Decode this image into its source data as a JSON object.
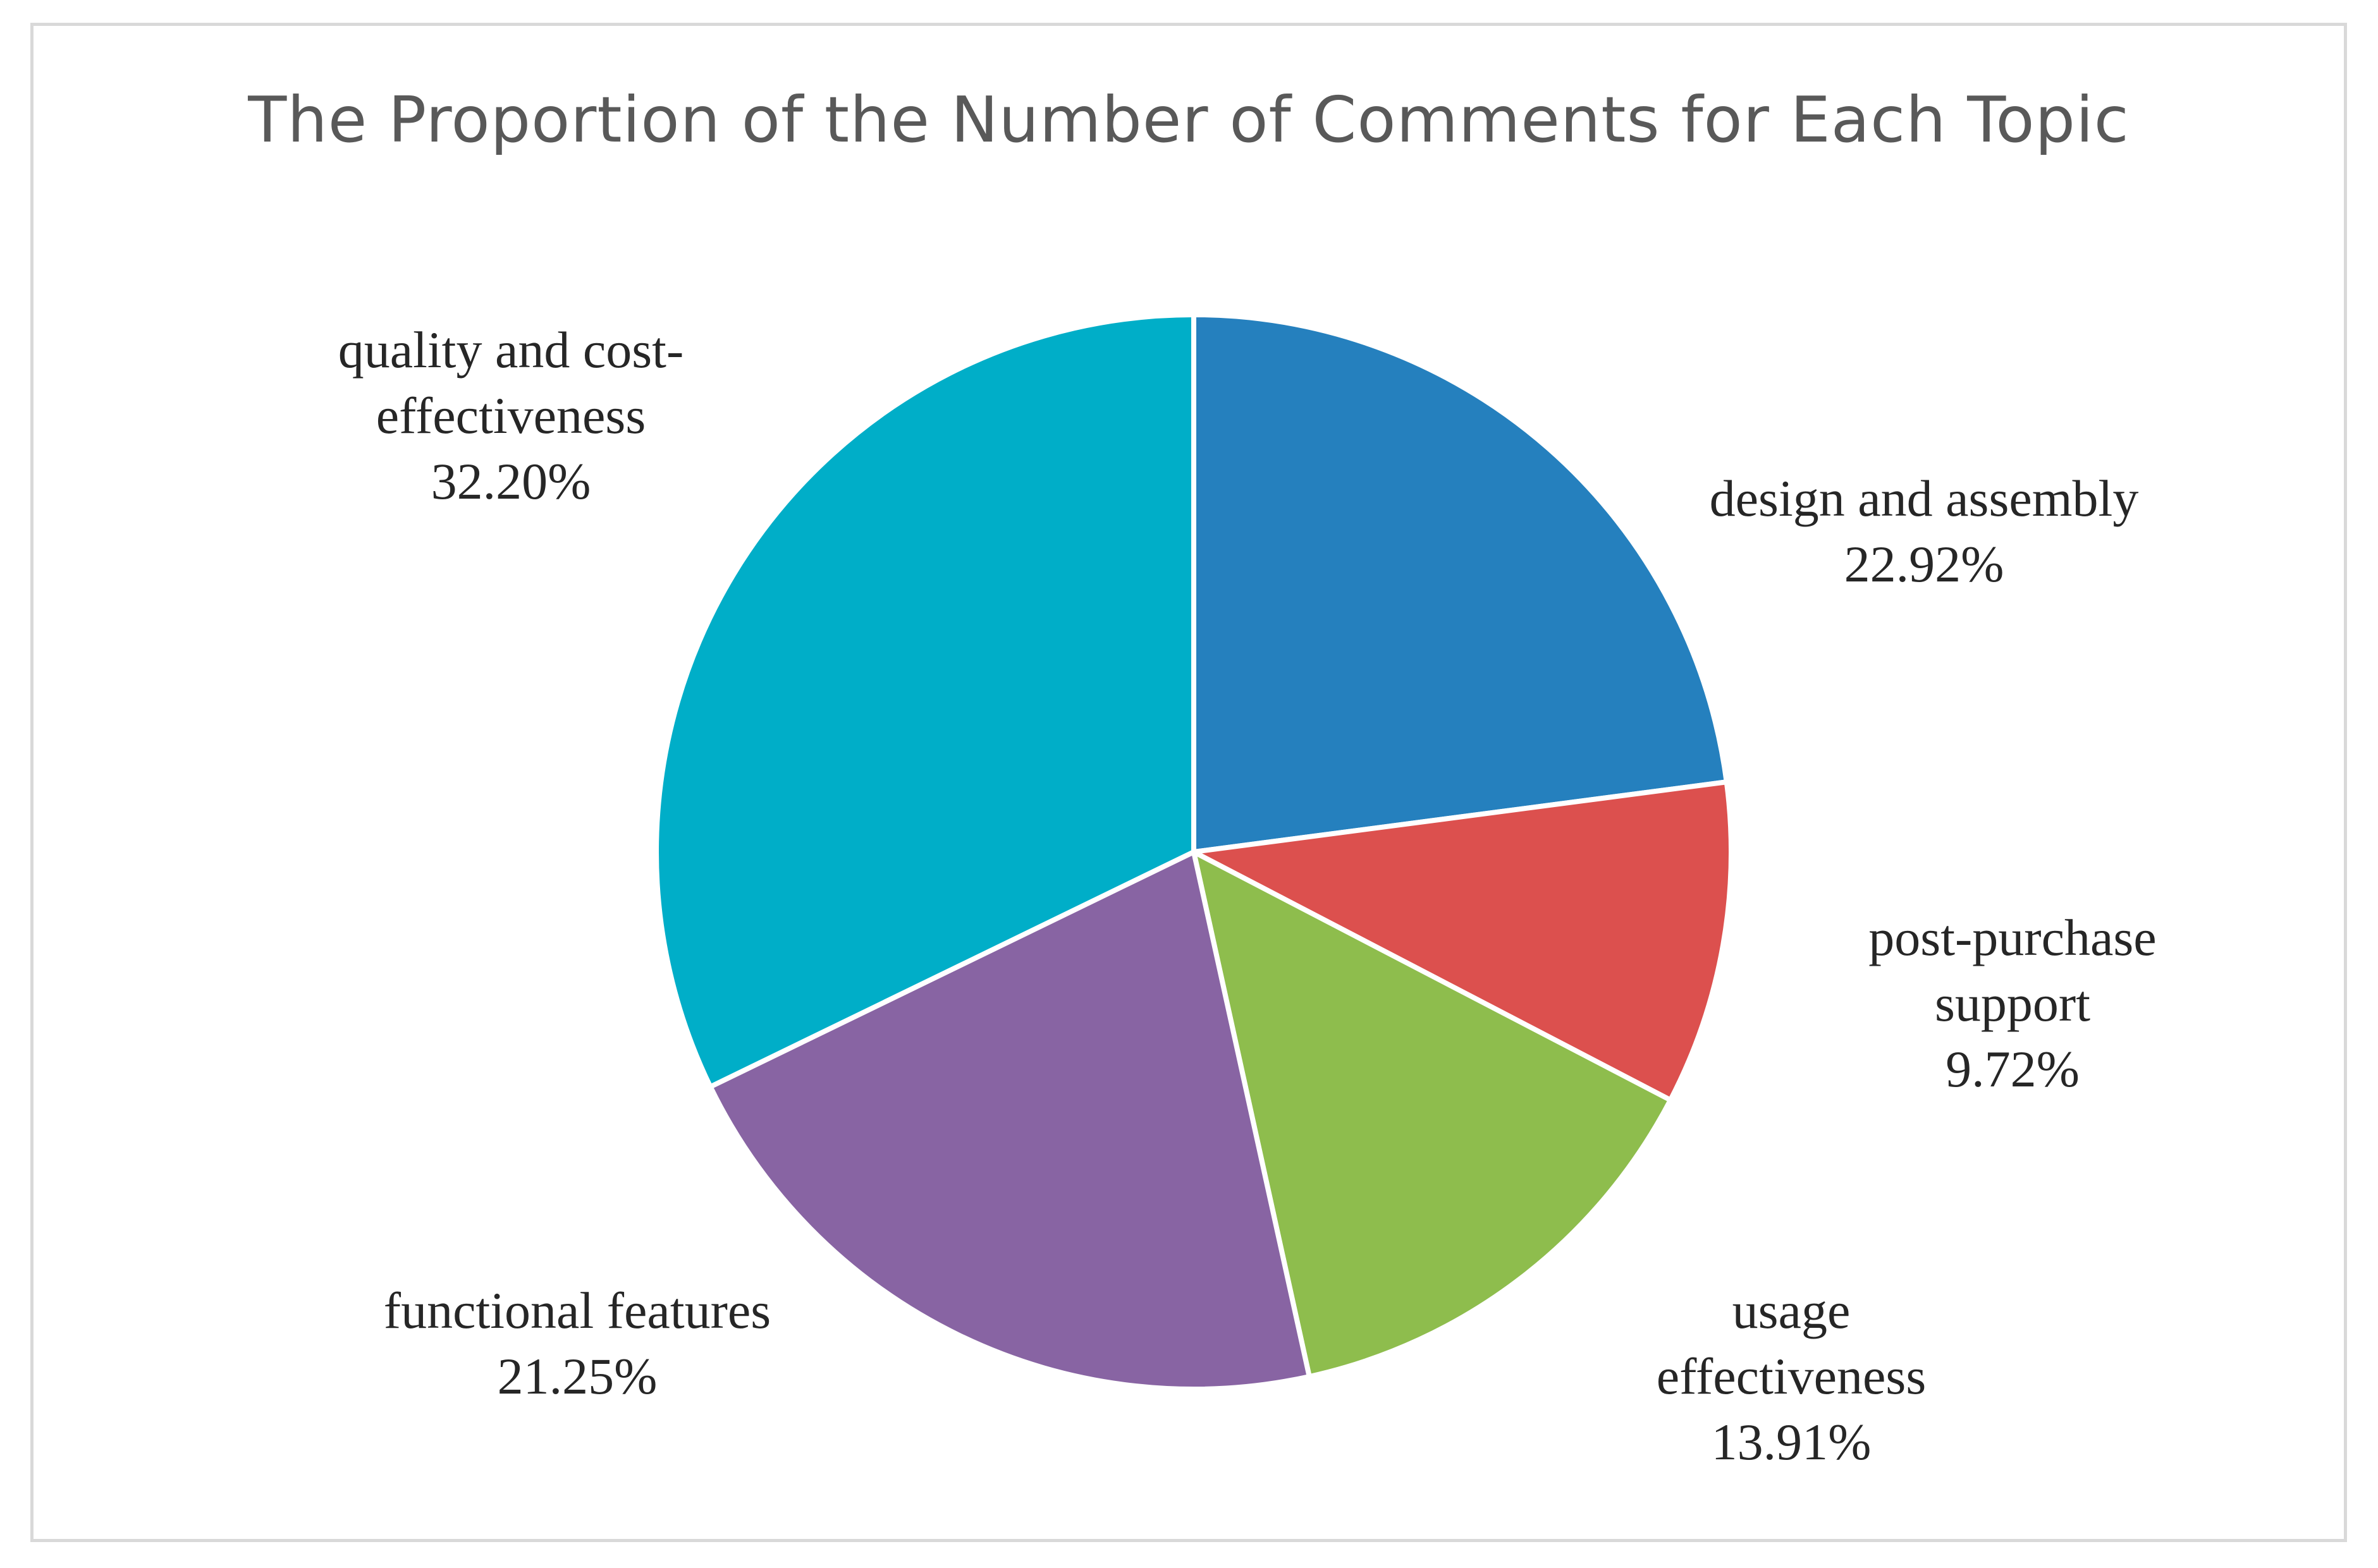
{
  "chart_data": {
    "type": "pie",
    "title": "The Proportion of the Number of Comments for Each Topic",
    "start_angle_deg": 0,
    "direction": "clockwise",
    "slices": [
      {
        "label_lines": [
          "design and assembly"
        ],
        "percent_text": "22.92%",
        "value": 22.92,
        "color": "#2580be"
      },
      {
        "label_lines": [
          "post-purchase",
          "support"
        ],
        "percent_text": "9.72%",
        "value": 9.72,
        "color": "#dc504e"
      },
      {
        "label_lines": [
          "usage",
          "effectiveness"
        ],
        "percent_text": "13.91%",
        "value": 13.91,
        "color": "#8ebd4d"
      },
      {
        "label_lines": [
          "functional features"
        ],
        "percent_text": "21.25%",
        "value": 21.25,
        "color": "#8864a3"
      },
      {
        "label_lines": [
          "quality and cost-",
          "effectiveness"
        ],
        "percent_text": "32.20%",
        "value": 32.2,
        "color": "#00aec8"
      }
    ],
    "legend": "none",
    "data_labels": "outside"
  }
}
